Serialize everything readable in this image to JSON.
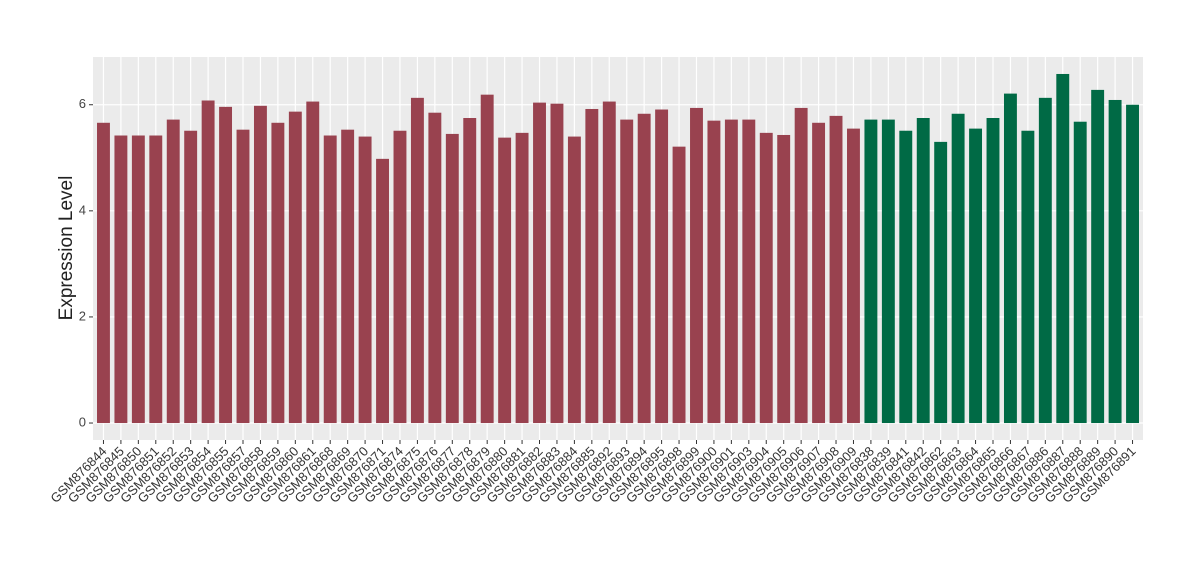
{
  "chart_data": {
    "type": "bar",
    "y_label": "Expression Level",
    "categories": [
      "GSM876844",
      "GSM876845",
      "GSM876850",
      "GSM876851",
      "GSM876852",
      "GSM876853",
      "GSM876854",
      "GSM876855",
      "GSM876857",
      "GSM876858",
      "GSM876859",
      "GSM876860",
      "GSM876861",
      "GSM876868",
      "GSM876869",
      "GSM876870",
      "GSM876871",
      "GSM876874",
      "GSM876875",
      "GSM876876",
      "GSM876877",
      "GSM876878",
      "GSM876879",
      "GSM876880",
      "GSM876881",
      "GSM876882",
      "GSM876883",
      "GSM876884",
      "GSM876885",
      "GSM876892",
      "GSM876893",
      "GSM876894",
      "GSM876895",
      "GSM876898",
      "GSM876899",
      "GSM876900",
      "GSM876901",
      "GSM876903",
      "GSM876904",
      "GSM876905",
      "GSM876906",
      "GSM876907",
      "GSM876908",
      "GSM876909",
      "GSM876838",
      "GSM876839",
      "GSM876841",
      "GSM876842",
      "GSM876862",
      "GSM876863",
      "GSM876864",
      "GSM876865",
      "GSM876866",
      "GSM876867",
      "GSM876886",
      "GSM876887",
      "GSM876888",
      "GSM876889",
      "GSM876890",
      "GSM876891"
    ],
    "values": [
      5.66,
      5.42,
      5.42,
      5.42,
      5.72,
      5.51,
      6.08,
      5.96,
      5.53,
      5.98,
      5.66,
      5.87,
      6.06,
      5.42,
      5.53,
      5.4,
      4.98,
      5.51,
      6.13,
      5.85,
      5.45,
      5.75,
      6.19,
      5.38,
      5.47,
      6.04,
      6.02,
      5.4,
      5.92,
      6.06,
      5.72,
      5.83,
      5.91,
      5.21,
      5.94,
      5.7,
      5.72,
      5.72,
      5.47,
      5.43,
      5.94,
      5.66,
      5.79,
      5.55,
      5.72,
      5.72,
      5.51,
      5.75,
      5.3,
      5.83,
      5.55,
      5.75,
      6.21,
      5.51,
      6.13,
      6.58,
      5.68,
      6.28,
      6.09,
      6.0
    ],
    "colors": [
      "#99424f",
      "#99424f",
      "#99424f",
      "#99424f",
      "#99424f",
      "#99424f",
      "#99424f",
      "#99424f",
      "#99424f",
      "#99424f",
      "#99424f",
      "#99424f",
      "#99424f",
      "#99424f",
      "#99424f",
      "#99424f",
      "#99424f",
      "#99424f",
      "#99424f",
      "#99424f",
      "#99424f",
      "#99424f",
      "#99424f",
      "#99424f",
      "#99424f",
      "#99424f",
      "#99424f",
      "#99424f",
      "#99424f",
      "#99424f",
      "#99424f",
      "#99424f",
      "#99424f",
      "#99424f",
      "#99424f",
      "#99424f",
      "#99424f",
      "#99424f",
      "#99424f",
      "#99424f",
      "#99424f",
      "#99424f",
      "#99424f",
      "#99424f",
      "#006a45",
      "#006a45",
      "#006a45",
      "#006a45",
      "#006a45",
      "#006a45",
      "#006a45",
      "#006a45",
      "#006a45",
      "#006a45",
      "#006a45",
      "#006a45",
      "#006a45",
      "#006a45",
      "#006a45",
      "#006a45"
    ],
    "ylim": [
      -0.32,
      6.9
    ],
    "yticks": [
      0,
      2,
      4,
      6
    ],
    "grid": true
  }
}
